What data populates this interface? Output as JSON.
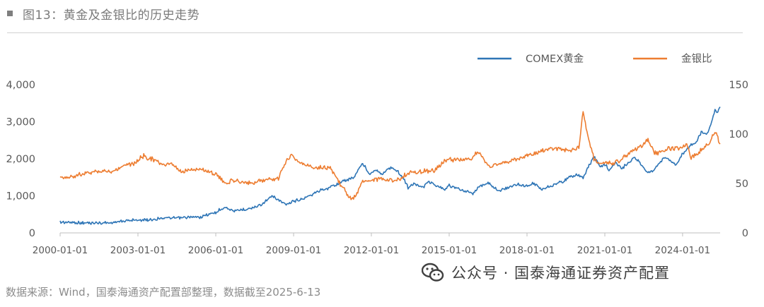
{
  "header": {
    "title": "图13：黄金及金银比的历史走势"
  },
  "watermark": {
    "text": "公众号 · 国泰海通证券资产配置"
  },
  "source": {
    "text": "数据来源：Wind，国泰海通资产配置部整理，数据截至2025-6-13"
  },
  "colors": {
    "gold": "#2e75b6",
    "ratio": "#ed7d31"
  },
  "chart_data": {
    "type": "line",
    "title": "",
    "legend_position": "top-right",
    "grid": false,
    "x_ticks": [
      "2000-01-01",
      "2003-01-01",
      "2006-01-01",
      "2009-01-01",
      "2012-01-01",
      "2015-01-01",
      "2018-01-01",
      "2021-01-01",
      "2024-01-01"
    ],
    "x_range": [
      "2000-01-01",
      "2025-06-13"
    ],
    "y_left": {
      "ticks": [
        "0",
        "1,000",
        "2,000",
        "3,000",
        "4,000"
      ],
      "range": [
        0,
        4000
      ]
    },
    "y_right": {
      "ticks": [
        "0",
        "50",
        "100",
        "150"
      ],
      "range": [
        0,
        150
      ]
    },
    "series": [
      {
        "name": "COMEX黄金",
        "axis": "left",
        "points": [
          [
            "2000-01-01",
            290
          ],
          [
            "2000-06-01",
            285
          ],
          [
            "2001-01-01",
            270
          ],
          [
            "2001-06-01",
            270
          ],
          [
            "2002-01-01",
            280
          ],
          [
            "2002-06-01",
            320
          ],
          [
            "2003-01-01",
            350
          ],
          [
            "2003-06-01",
            350
          ],
          [
            "2004-01-01",
            410
          ],
          [
            "2004-06-01",
            395
          ],
          [
            "2005-01-01",
            425
          ],
          [
            "2005-06-01",
            430
          ],
          [
            "2006-01-01",
            550
          ],
          [
            "2006-05-01",
            700
          ],
          [
            "2006-10-01",
            590
          ],
          [
            "2007-01-01",
            630
          ],
          [
            "2007-06-01",
            660
          ],
          [
            "2007-11-01",
            800
          ],
          [
            "2008-03-01",
            990
          ],
          [
            "2008-06-01",
            890
          ],
          [
            "2008-10-01",
            750
          ],
          [
            "2009-01-01",
            860
          ],
          [
            "2009-06-01",
            930
          ],
          [
            "2009-12-01",
            1120
          ],
          [
            "2010-06-01",
            1230
          ],
          [
            "2010-12-01",
            1390
          ],
          [
            "2011-05-01",
            1500
          ],
          [
            "2011-08-01",
            1800
          ],
          [
            "2011-09-01",
            1880
          ],
          [
            "2011-12-01",
            1600
          ],
          [
            "2012-03-01",
            1700
          ],
          [
            "2012-06-01",
            1580
          ],
          [
            "2012-10-01",
            1780
          ],
          [
            "2013-01-01",
            1670
          ],
          [
            "2013-04-01",
            1450
          ],
          [
            "2013-06-01",
            1230
          ],
          [
            "2013-09-01",
            1330
          ],
          [
            "2014-01-01",
            1240
          ],
          [
            "2014-03-01",
            1380
          ],
          [
            "2014-06-01",
            1310
          ],
          [
            "2014-11-01",
            1160
          ],
          [
            "2015-01-01",
            1280
          ],
          [
            "2015-06-01",
            1170
          ],
          [
            "2015-12-01",
            1060
          ],
          [
            "2016-03-01",
            1250
          ],
          [
            "2016-07-01",
            1360
          ],
          [
            "2016-12-01",
            1140
          ],
          [
            "2017-06-01",
            1250
          ],
          [
            "2017-09-01",
            1320
          ],
          [
            "2017-12-01",
            1250
          ],
          [
            "2018-04-01",
            1340
          ],
          [
            "2018-08-01",
            1180
          ],
          [
            "2019-01-01",
            1290
          ],
          [
            "2019-06-01",
            1400
          ],
          [
            "2019-09-01",
            1520
          ],
          [
            "2020-01-01",
            1560
          ],
          [
            "2020-03-01",
            1480
          ],
          [
            "2020-05-01",
            1730
          ],
          [
            "2020-08-01",
            2050
          ],
          [
            "2020-11-01",
            1780
          ],
          [
            "2021-01-01",
            1850
          ],
          [
            "2021-03-01",
            1700
          ],
          [
            "2021-06-01",
            1890
          ],
          [
            "2021-09-01",
            1750
          ],
          [
            "2022-03-01",
            2040
          ],
          [
            "2022-06-01",
            1830
          ],
          [
            "2022-09-01",
            1640
          ],
          [
            "2022-11-01",
            1660
          ],
          [
            "2023-02-01",
            1880
          ],
          [
            "2023-05-01",
            2050
          ],
          [
            "2023-10-01",
            1830
          ],
          [
            "2023-12-01",
            2060
          ],
          [
            "2024-03-01",
            2250
          ],
          [
            "2024-05-01",
            2400
          ],
          [
            "2024-07-01",
            2420
          ],
          [
            "2024-10-01",
            2750
          ],
          [
            "2024-12-01",
            2650
          ],
          [
            "2025-02-01",
            2900
          ],
          [
            "2025-04-01",
            3300
          ],
          [
            "2025-05-01",
            3250
          ],
          [
            "2025-06-13",
            3400
          ]
        ]
      },
      {
        "name": "金银比",
        "axis": "right",
        "points": [
          [
            "2000-01-01",
            55
          ],
          [
            "2000-06-01",
            57
          ],
          [
            "2001-01-01",
            60
          ],
          [
            "2001-06-01",
            63
          ],
          [
            "2002-01-01",
            62
          ],
          [
            "2002-06-01",
            68
          ],
          [
            "2003-01-01",
            72
          ],
          [
            "2003-03-01",
            78
          ],
          [
            "2003-06-01",
            76
          ],
          [
            "2004-01-01",
            69
          ],
          [
            "2004-05-01",
            69
          ],
          [
            "2004-09-01",
            61
          ],
          [
            "2005-01-01",
            64
          ],
          [
            "2005-06-01",
            64
          ],
          [
            "2006-01-01",
            60
          ],
          [
            "2006-05-01",
            50
          ],
          [
            "2006-09-01",
            53
          ],
          [
            "2007-01-01",
            51
          ],
          [
            "2007-06-01",
            51
          ],
          [
            "2008-01-01",
            54
          ],
          [
            "2008-06-01",
            55
          ],
          [
            "2008-10-01",
            75
          ],
          [
            "2008-12-01",
            80
          ],
          [
            "2009-03-01",
            72
          ],
          [
            "2009-06-01",
            69
          ],
          [
            "2010-01-01",
            66
          ],
          [
            "2010-06-01",
            66
          ],
          [
            "2010-11-01",
            48
          ],
          [
            "2011-04-01",
            33
          ],
          [
            "2011-06-01",
            38
          ],
          [
            "2011-09-01",
            53
          ],
          [
            "2012-01-01",
            53
          ],
          [
            "2012-06-01",
            55
          ],
          [
            "2012-12-01",
            52
          ],
          [
            "2013-06-01",
            60
          ],
          [
            "2013-12-01",
            62
          ],
          [
            "2014-06-01",
            63
          ],
          [
            "2014-12-01",
            74
          ],
          [
            "2015-06-01",
            74
          ],
          [
            "2015-12-01",
            76
          ],
          [
            "2016-02-01",
            82
          ],
          [
            "2016-08-01",
            67
          ],
          [
            "2017-01-01",
            70
          ],
          [
            "2017-06-01",
            73
          ],
          [
            "2018-01-01",
            78
          ],
          [
            "2018-06-01",
            81
          ],
          [
            "2018-11-01",
            85
          ],
          [
            "2019-03-01",
            86
          ],
          [
            "2019-09-01",
            83
          ],
          [
            "2020-01-01",
            88
          ],
          [
            "2020-03-01",
            123
          ],
          [
            "2020-04-01",
            110
          ],
          [
            "2020-08-01",
            74
          ],
          [
            "2020-12-01",
            70
          ],
          [
            "2021-06-01",
            71
          ],
          [
            "2021-12-01",
            80
          ],
          [
            "2022-06-01",
            88
          ],
          [
            "2022-09-01",
            94
          ],
          [
            "2022-12-01",
            80
          ],
          [
            "2023-06-01",
            85
          ],
          [
            "2023-12-01",
            86
          ],
          [
            "2024-03-01",
            90
          ],
          [
            "2024-05-01",
            76
          ],
          [
            "2024-07-01",
            80
          ],
          [
            "2024-12-01",
            88
          ],
          [
            "2025-02-01",
            93
          ],
          [
            "2025-04-01",
            102
          ],
          [
            "2025-05-01",
            98
          ],
          [
            "2025-06-13",
            90
          ]
        ]
      }
    ]
  }
}
